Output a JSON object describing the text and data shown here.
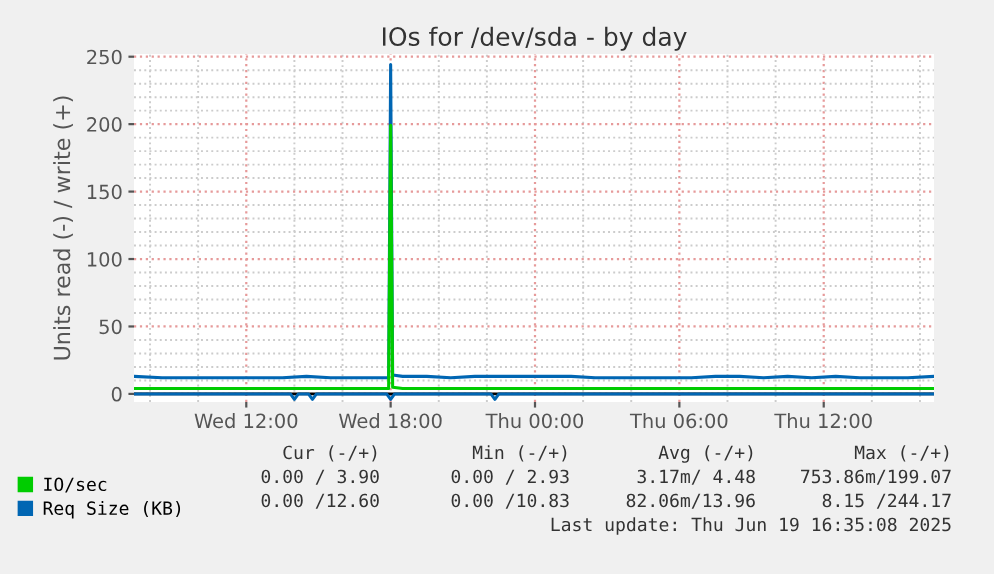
{
  "chart_data": {
    "type": "line",
    "title": "IOs for /dev/sda - by day",
    "ylabel": "Units read (-) / write (+)",
    "x": [
      "2025-06-18T07:20",
      "2025-06-18T08:30",
      "2025-06-18T09:30",
      "2025-06-18T10:30",
      "2025-06-18T11:30",
      "2025-06-18T12:30",
      "2025-06-18T13:30",
      "2025-06-18T14:30",
      "2025-06-18T15:30",
      "2025-06-18T16:30",
      "2025-06-18T17:30",
      "2025-06-18T17:55",
      "2025-06-18T18:00",
      "2025-06-18T18:05",
      "2025-06-18T18:30",
      "2025-06-18T19:30",
      "2025-06-18T20:30",
      "2025-06-18T21:30",
      "2025-06-18T22:30",
      "2025-06-18T23:30",
      "2025-06-19T00:30",
      "2025-06-19T01:30",
      "2025-06-19T02:30",
      "2025-06-19T03:30",
      "2025-06-19T04:30",
      "2025-06-19T05:30",
      "2025-06-19T06:30",
      "2025-06-19T07:30",
      "2025-06-19T08:30",
      "2025-06-19T09:30",
      "2025-06-19T10:30",
      "2025-06-19T11:30",
      "2025-06-19T12:30",
      "2025-06-19T13:30",
      "2025-06-19T14:30",
      "2025-06-19T15:30",
      "2025-06-19T16:35"
    ],
    "series": [
      {
        "name": "IO/sec",
        "color": "#00cc00",
        "values": [
          4,
          4,
          4,
          4,
          4,
          4,
          4,
          4,
          4,
          4,
          4,
          4,
          199.07,
          5,
          4,
          4,
          4,
          4,
          4,
          4,
          4,
          4,
          4,
          4,
          4,
          4,
          4,
          4,
          4,
          4,
          4,
          4,
          4,
          4,
          4,
          4,
          4
        ]
      },
      {
        "name": "Req Size (KB)",
        "color": "#0066b3",
        "values": [
          13,
          12,
          12,
          12,
          12,
          12,
          12,
          13,
          12,
          12,
          12,
          12,
          244.17,
          14,
          13,
          13,
          12,
          13,
          13,
          13,
          13,
          13,
          12,
          12,
          12,
          12,
          12,
          13,
          13,
          12,
          13,
          12,
          13,
          12,
          12,
          12,
          13
        ]
      },
      {
        "color": "#0066b3",
        "x": [
          "2025-06-18T07:20",
          "2025-06-18T13:50",
          "2025-06-18T14:00",
          "2025-06-18T14:10",
          "2025-06-18T14:35",
          "2025-06-18T14:45",
          "2025-06-18T14:55",
          "2025-06-18T17:50",
          "2025-06-18T18:00",
          "2025-06-18T18:10",
          "2025-06-18T22:10",
          "2025-06-18T22:20",
          "2025-06-18T22:30",
          "2025-06-19T16:35"
        ],
        "values": [
          0,
          0,
          -4,
          0,
          0,
          -4,
          0,
          0,
          -4,
          0,
          0,
          -4,
          0,
          0
        ]
      }
    ],
    "xlim": [
      "2025-06-18T07:20",
      "2025-06-19T16:35"
    ],
    "xticks": [
      {
        "value": "2025-06-18T12:00",
        "label": "Wed 12:00"
      },
      {
        "value": "2025-06-18T18:00",
        "label": "Wed 18:00"
      },
      {
        "value": "2025-06-19T00:00",
        "label": "Thu 00:00"
      },
      {
        "value": "2025-06-19T06:00",
        "label": "Thu 06:00"
      },
      {
        "value": "2025-06-19T12:00",
        "label": "Thu 12:00"
      }
    ],
    "ylim": [
      -6,
      252
    ],
    "yticks": [
      0,
      50,
      100,
      150,
      200,
      250
    ],
    "ref_lines": [
      {
        "axis": "y",
        "value": 0,
        "color": "#000000"
      }
    ],
    "grid": true,
    "legend": "bottom left",
    "annotations": [
      "Cur (-/+)",
      "Min (-/+)",
      "Avg (-/+)",
      "Max (-/+)",
      "0.00 / 3.90",
      "0.00 / 2.93",
      "3.17m/ 4.48",
      "753.86m/199.07",
      "0.00 /12.60",
      "0.00 /10.83",
      "82.06m/13.96",
      "8.15 /244.17",
      "Last update: Thu Jun 19 16:35:08 2025"
    ]
  }
}
